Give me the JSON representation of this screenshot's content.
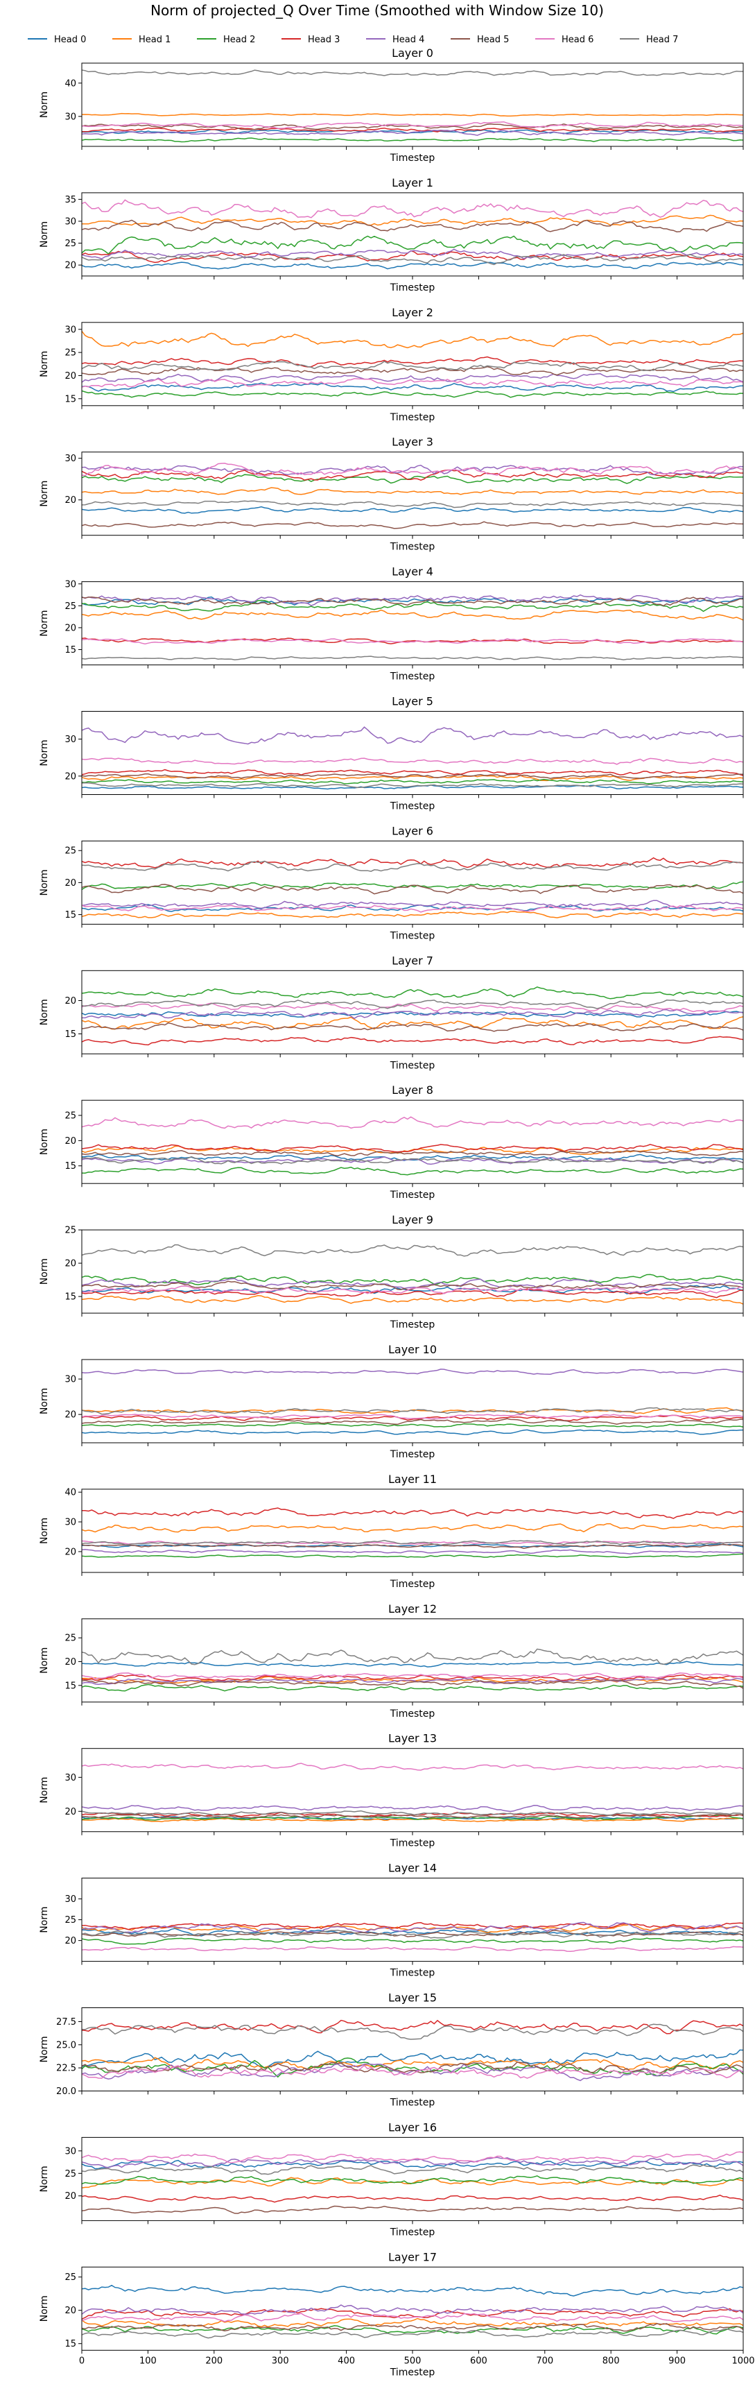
{
  "chart_data": {
    "type": "line",
    "title": "Norm of projected_Q Over Time (Smoothed with Window Size 10)",
    "series_names": [
      "Head 0",
      "Head 1",
      "Head 2",
      "Head 3",
      "Head 4",
      "Head 5",
      "Head 6",
      "Head 7"
    ],
    "colors": [
      "#1f77b4",
      "#ff7f0e",
      "#2ca02c",
      "#d62728",
      "#9467bd",
      "#8c564b",
      "#e377c2",
      "#7f7f7f"
    ],
    "legend_position": "top-center",
    "xlabel": "Timestep",
    "ylabel": "Norm",
    "x_range": [
      0,
      1000
    ],
    "x_ticks": [
      0,
      100,
      200,
      300,
      400,
      500,
      600,
      700,
      800,
      900,
      1000
    ],
    "shared_x": true,
    "grid": false,
    "panels": [
      {
        "title": "Layer 0",
        "ylim": [
          21,
          46
        ],
        "yticks": [
          30,
          40
        ],
        "head_means": [
          25.5,
          30.5,
          23.0,
          26.0,
          25.0,
          27.0,
          27.5,
          43.0
        ],
        "head_amplitude": [
          0.6,
          0.3,
          0.5,
          0.6,
          0.7,
          0.7,
          0.7,
          0.8
        ]
      },
      {
        "title": "Layer 1",
        "ylim": [
          17.5,
          36.5
        ],
        "yticks": [
          20,
          25,
          30,
          35
        ],
        "head_means": [
          20.0,
          30.0,
          25.0,
          22.0,
          22.5,
          29.0,
          32.5,
          21.5
        ],
        "head_amplitude": [
          0.8,
          0.9,
          1.8,
          1.0,
          1.0,
          1.2,
          1.8,
          1.0
        ]
      },
      {
        "title": "Layer 2",
        "ylim": [
          13.5,
          31.5
        ],
        "yticks": [
          15,
          20,
          25,
          30
        ],
        "head_means": [
          17.5,
          27.5,
          16.0,
          23.0,
          19.5,
          21.0,
          18.5,
          22.0
        ],
        "head_amplitude": [
          0.8,
          1.2,
          0.6,
          0.8,
          0.9,
          0.9,
          0.9,
          0.9
        ]
      },
      {
        "title": "Layer 3",
        "ylim": [
          11.5,
          31.5
        ],
        "yticks": [
          20,
          30
        ],
        "head_means": [
          17.5,
          22.0,
          25.0,
          26.0,
          27.5,
          14.0,
          27.0,
          19.0
        ],
        "head_amplitude": [
          0.6,
          0.8,
          1.0,
          1.0,
          1.2,
          0.6,
          1.2,
          0.6
        ]
      },
      {
        "title": "Layer 4",
        "ylim": [
          11.5,
          30.5
        ],
        "yticks": [
          15,
          20,
          25,
          30
        ],
        "head_means": [
          26.0,
          23.0,
          25.0,
          17.0,
          26.5,
          26.0,
          17.0,
          13.0
        ],
        "head_amplitude": [
          0.9,
          0.9,
          0.9,
          0.5,
          1.0,
          0.9,
          0.5,
          0.4
        ]
      },
      {
        "title": "Layer 5",
        "ylim": [
          15.0,
          37.5
        ],
        "yticks": [
          20,
          30
        ],
        "head_means": [
          17.0,
          19.5,
          18.5,
          21.0,
          31.0,
          20.0,
          24.0,
          17.5
        ],
        "head_amplitude": [
          0.5,
          0.6,
          0.6,
          0.7,
          1.8,
          0.6,
          0.8,
          0.5
        ]
      },
      {
        "title": "Layer 6",
        "ylim": [
          13.5,
          26.5
        ],
        "yticks": [
          15,
          20,
          25
        ],
        "head_means": [
          16.0,
          15.0,
          19.5,
          23.0,
          16.5,
          19.0,
          16.0,
          22.5
        ],
        "head_amplitude": [
          0.5,
          0.5,
          0.5,
          0.7,
          0.6,
          0.6,
          0.5,
          0.6
        ]
      },
      {
        "title": "Layer 7",
        "ylim": [
          12.0,
          24.5
        ],
        "yticks": [
          15,
          20
        ],
        "head_means": [
          18.0,
          16.5,
          21.0,
          14.0,
          18.0,
          16.0,
          19.0,
          19.5
        ],
        "head_amplitude": [
          0.5,
          0.7,
          0.6,
          0.5,
          0.6,
          0.5,
          0.6,
          0.5
        ]
      },
      {
        "title": "Layer 8",
        "ylim": [
          11.5,
          28.0
        ],
        "yticks": [
          15,
          20,
          25
        ],
        "head_means": [
          16.5,
          18.0,
          14.0,
          18.5,
          16.0,
          17.5,
          23.5,
          16.0
        ],
        "head_amplitude": [
          0.6,
          0.6,
          0.6,
          0.6,
          0.6,
          0.6,
          1.0,
          0.6
        ]
      },
      {
        "title": "Layer 9",
        "ylim": [
          12.5,
          25.0
        ],
        "yticks": [
          15,
          20,
          25
        ],
        "head_means": [
          16.0,
          14.5,
          17.5,
          15.5,
          17.0,
          16.5,
          16.0,
          22.0
        ],
        "head_amplitude": [
          0.5,
          0.5,
          0.6,
          0.5,
          0.6,
          0.5,
          0.5,
          0.7
        ]
      },
      {
        "title": "Layer 10",
        "ylim": [
          12.0,
          35.5
        ],
        "yticks": [
          20,
          30
        ],
        "head_means": [
          15.0,
          21.0,
          17.0,
          19.0,
          32.0,
          18.0,
          19.5,
          21.0
        ],
        "head_amplitude": [
          0.5,
          0.6,
          0.5,
          0.6,
          0.6,
          0.6,
          0.6,
          0.8
        ]
      },
      {
        "title": "Layer 11",
        "ylim": [
          13.0,
          41.0
        ],
        "yticks": [
          20,
          30,
          40
        ],
        "head_means": [
          22.0,
          28.0,
          18.5,
          33.0,
          20.0,
          22.0,
          23.0,
          23.0
        ],
        "head_amplitude": [
          0.5,
          1.2,
          0.5,
          1.5,
          0.6,
          0.6,
          0.6,
          0.6
        ]
      },
      {
        "title": "Layer 12",
        "ylim": [
          11.5,
          29.0
        ],
        "yticks": [
          15,
          20,
          25
        ],
        "head_means": [
          19.5,
          16.0,
          14.5,
          16.5,
          16.0,
          15.5,
          17.0,
          21.0
        ],
        "head_amplitude": [
          0.5,
          0.6,
          0.6,
          0.6,
          0.6,
          0.6,
          0.6,
          1.5
        ]
      },
      {
        "title": "Layer 13",
        "ylim": [
          14.0,
          38.5
        ],
        "yticks": [
          20,
          30
        ],
        "head_means": [
          18.0,
          17.5,
          18.0,
          19.0,
          21.0,
          18.5,
          33.0,
          19.5
        ],
        "head_amplitude": [
          0.5,
          0.5,
          0.6,
          0.6,
          0.8,
          0.6,
          0.9,
          0.6
        ]
      },
      {
        "title": "Layer 14",
        "ylim": [
          15.0,
          35.0
        ],
        "yticks": [
          20,
          25,
          30
        ],
        "head_means": [
          22.0,
          23.0,
          20.0,
          23.5,
          23.0,
          21.5,
          18.0,
          21.5
        ],
        "head_amplitude": [
          0.7,
          0.8,
          0.6,
          0.7,
          1.0,
          0.6,
          0.5,
          0.7
        ]
      },
      {
        "title": "Layer 15",
        "ylim": [
          20.0,
          29.0
        ],
        "yticks": [
          20.0,
          22.5,
          25.0,
          27.5
        ],
        "head_means": [
          23.5,
          23.0,
          22.5,
          27.0,
          22.0,
          22.5,
          22.0,
          26.5
        ],
        "head_amplitude": [
          0.7,
          0.6,
          0.7,
          0.6,
          0.7,
          0.6,
          0.7,
          0.6
        ]
      },
      {
        "title": "Layer 16",
        "ylim": [
          14.5,
          33.0
        ],
        "yticks": [
          20,
          25,
          30
        ],
        "head_means": [
          27.0,
          23.0,
          23.5,
          19.5,
          27.5,
          17.0,
          28.5,
          26.0
        ],
        "head_amplitude": [
          0.9,
          0.8,
          0.8,
          0.6,
          0.9,
          0.6,
          0.9,
          0.8
        ]
      },
      {
        "title": "Layer 17",
        "ylim": [
          14.0,
          26.5
        ],
        "yticks": [
          15,
          20,
          25
        ],
        "head_means": [
          23.0,
          18.0,
          17.0,
          19.5,
          20.0,
          17.5,
          19.0,
          16.5
        ],
        "head_amplitude": [
          0.6,
          0.6,
          0.6,
          0.6,
          0.7,
          0.6,
          0.6,
          0.5
        ]
      }
    ]
  }
}
